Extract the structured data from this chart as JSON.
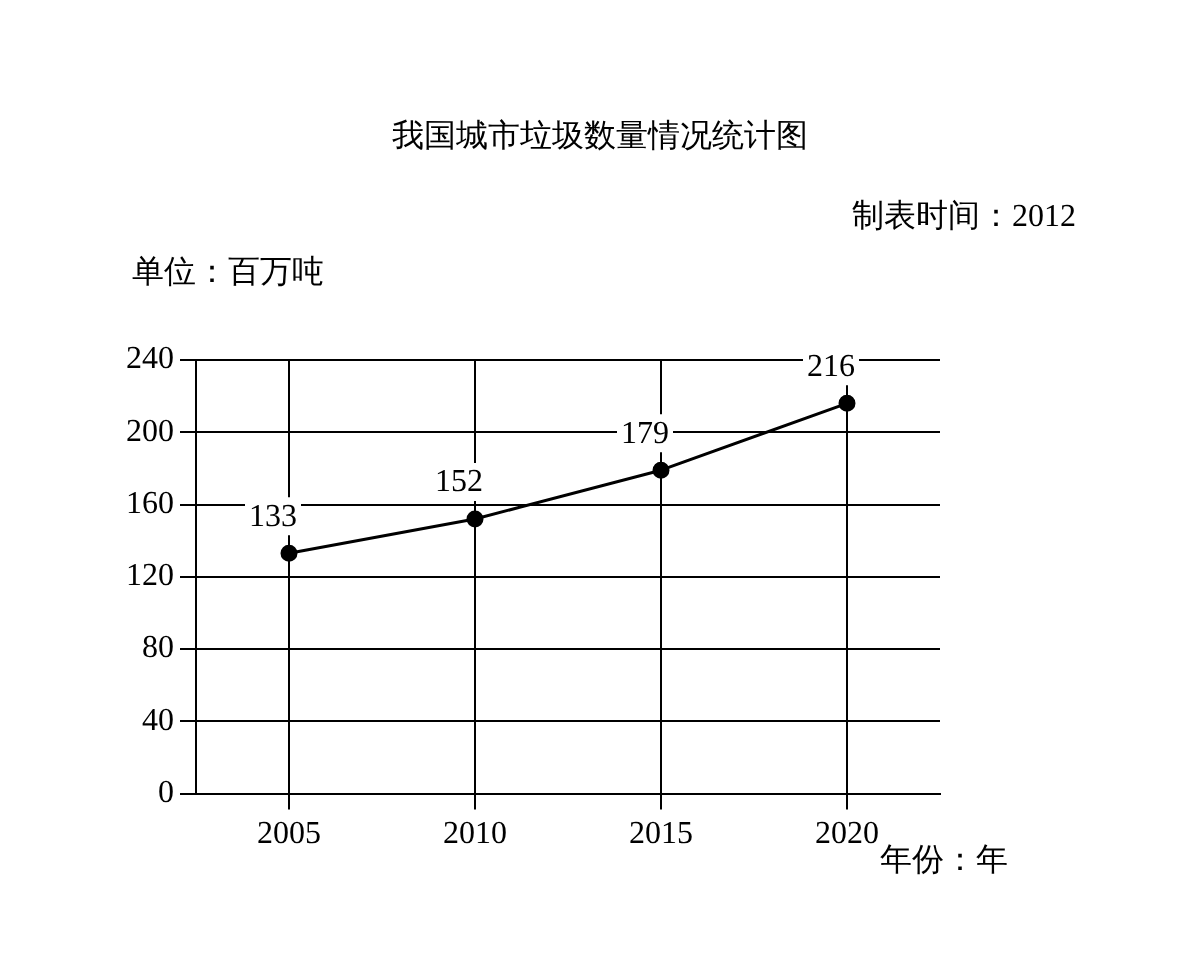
{
  "chart_data": {
    "type": "line",
    "title": "我国城市垃圾数量情况统计图",
    "annotations": [
      "制表时间：2012"
    ],
    "ylabel": "单位：百万吨",
    "xlabel": "年份：年",
    "categories": [
      "2005",
      "2010",
      "2015",
      "2020"
    ],
    "series": [
      {
        "color": "#000000",
        "values": [
          133,
          152,
          179,
          216
        ]
      }
    ],
    "ylim": [
      0,
      240
    ],
    "yticks": [
      0,
      40,
      80,
      120,
      160,
      200,
      240
    ],
    "grid": true,
    "data_labels": true,
    "marker": "circle",
    "line_style": "solid",
    "legend": false
  }
}
